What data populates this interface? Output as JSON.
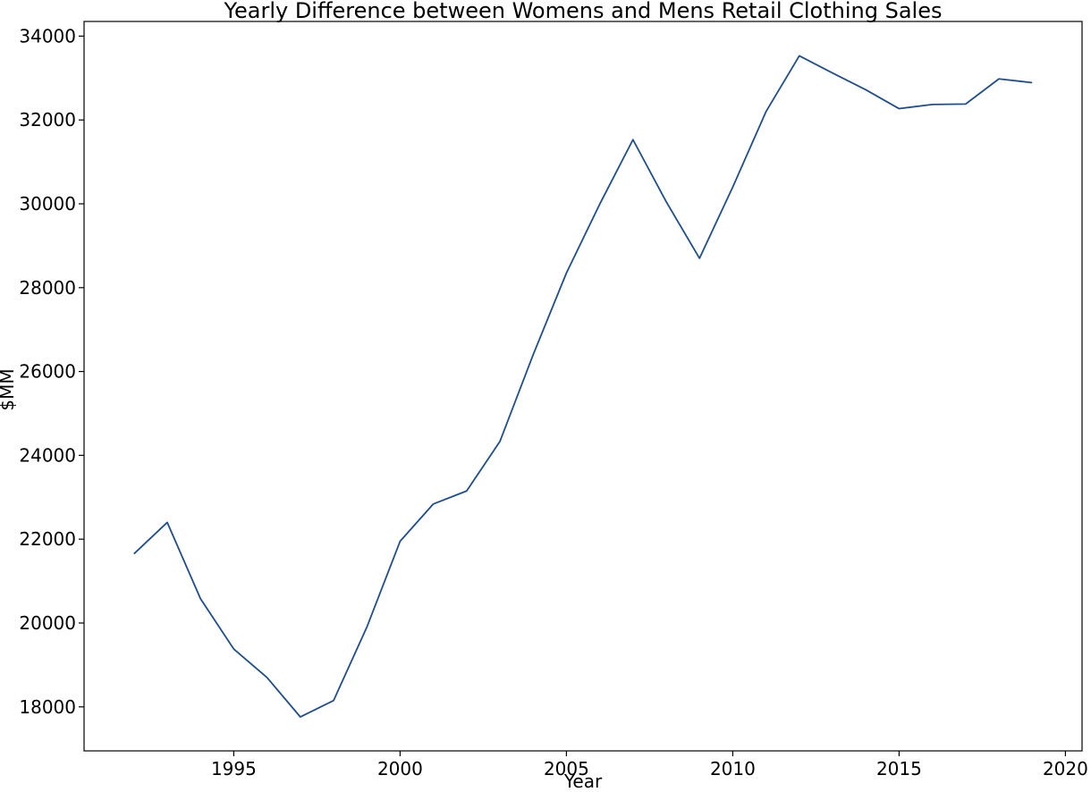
{
  "chart_data": {
    "type": "line",
    "title": "Yearly Difference between Womens and Mens Retail Clothing Sales",
    "xlabel": "Year",
    "ylabel": "$MM",
    "x": [
      1992,
      1993,
      1994,
      1995,
      1996,
      1997,
      1998,
      1999,
      2000,
      2001,
      2002,
      2003,
      2004,
      2005,
      2006,
      2007,
      2008,
      2009,
      2010,
      2011,
      2012,
      2013,
      2014,
      2015,
      2016,
      2017,
      2018,
      2019
    ],
    "series": [
      {
        "values": [
          21650,
          22400,
          20580,
          19380,
          18700,
          17760,
          18150,
          19900,
          21950,
          22840,
          23150,
          24330,
          26400,
          28350,
          29990,
          31530,
          30050,
          28700,
          30400,
          32200,
          33530,
          33120,
          32720,
          32270,
          32370,
          32380,
          32980,
          32890
        ]
      }
    ],
    "xlim": [
      1990.5,
      2020.5
    ],
    "ylim": [
      16950,
      34350
    ],
    "xticks": [
      1995,
      2000,
      2005,
      2010,
      2015,
      2020
    ],
    "yticks": [
      18000,
      20000,
      22000,
      24000,
      26000,
      28000,
      30000,
      32000,
      34000
    ],
    "grid": false,
    "line_color": "#1f4e8c"
  }
}
